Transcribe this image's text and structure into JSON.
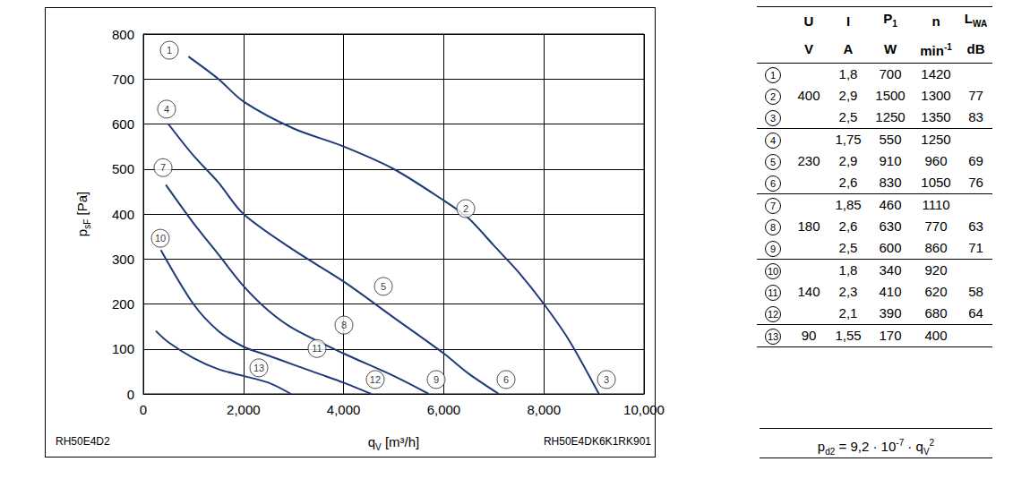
{
  "chart_data": {
    "type": "line",
    "xlabel": [
      {
        "t": "q"
      },
      {
        "sub": "V"
      },
      {
        "t": " [m³/h]"
      }
    ],
    "ylabel": [
      {
        "t": "p"
      },
      {
        "sub": "sF"
      },
      {
        "t": " [Pa]"
      }
    ],
    "xlim": [
      0,
      10000
    ],
    "xticks": [
      0,
      2000,
      4000,
      6000,
      8000,
      10000
    ],
    "ylim": [
      0,
      800
    ],
    "yticks": [
      0,
      100,
      200,
      300,
      400,
      500,
      600,
      700,
      800
    ],
    "grid": true,
    "marker": "none",
    "series": [
      {
        "color": "#1f3a7a",
        "x": [
          900,
          1500,
          2000,
          3000,
          4000,
          5000,
          6000,
          6500,
          7000,
          7500,
          8000,
          8500,
          9100
        ],
        "values": [
          750,
          700,
          650,
          590,
          550,
          500,
          430,
          390,
          330,
          270,
          200,
          120,
          0
        ]
      },
      {
        "color": "#1f3a7a",
        "x": [
          500,
          1000,
          1500,
          2000,
          3000,
          4000,
          5000,
          6000,
          6500,
          7100
        ],
        "values": [
          600,
          530,
          470,
          400,
          320,
          250,
          170,
          90,
          45,
          0
        ]
      },
      {
        "color": "#1f3a7a",
        "x": [
          450,
          1000,
          1500,
          2000,
          2500,
          3000,
          4000,
          5000,
          5700
        ],
        "values": [
          465,
          380,
          310,
          240,
          185,
          145,
          90,
          40,
          0
        ]
      },
      {
        "color": "#1f3a7a",
        "x": [
          350,
          1000,
          1500,
          2000,
          2500,
          3000,
          3500,
          4000,
          4550
        ],
        "values": [
          320,
          200,
          140,
          105,
          85,
          65,
          45,
          25,
          0
        ]
      },
      {
        "color": "#1f3a7a",
        "x": [
          250,
          500,
          1000,
          1500,
          2000,
          2500,
          2950
        ],
        "values": [
          140,
          115,
          80,
          55,
          40,
          25,
          0
        ]
      }
    ],
    "annotations": [
      {
        "text": "1",
        "x": 520,
        "y": 764
      },
      {
        "text": "2",
        "x": 6440,
        "y": 412
      },
      {
        "text": "3",
        "x": 9250,
        "y": 32
      },
      {
        "text": "4",
        "x": 465,
        "y": 633
      },
      {
        "text": "5",
        "x": 4795,
        "y": 239
      },
      {
        "text": "6",
        "x": 7245,
        "y": 32
      },
      {
        "text": "7",
        "x": 394,
        "y": 503
      },
      {
        "text": "8",
        "x": 4007,
        "y": 153
      },
      {
        "text": "9",
        "x": 5850,
        "y": 32
      },
      {
        "text": "10",
        "x": 340,
        "y": 346
      },
      {
        "text": "11",
        "x": 3470,
        "y": 101
      },
      {
        "text": "12",
        "x": 4633,
        "y": 32
      },
      {
        "text": "13",
        "x": 2308,
        "y": 58
      }
    ],
    "notes": {
      "left": "RH50E4D2",
      "right": "RH50E4DK6K1RK901"
    }
  },
  "table": {
    "header": [
      [
        {
          "t": "U"
        }
      ],
      [
        {
          "t": "I"
        }
      ],
      [
        {
          "t": "P"
        },
        {
          "sub": "1"
        }
      ],
      [
        {
          "t": "n"
        }
      ],
      [
        {
          "t": "L"
        },
        {
          "sub": "WA"
        }
      ]
    ],
    "units": [
      [
        {
          "t": "V"
        }
      ],
      [
        {
          "t": "A"
        }
      ],
      [
        {
          "t": "W"
        }
      ],
      [
        {
          "t": "min"
        },
        {
          "sup": "-1"
        }
      ],
      [
        {
          "t": "dB"
        }
      ]
    ],
    "groups": [
      {
        "U": "400",
        "rows": [
          [
            "1",
            "1,8",
            "700",
            "1420"
          ],
          [
            "2",
            "2,9",
            "1500",
            "1300",
            "77"
          ],
          [
            "3",
            "2,5",
            "1250",
            "1350",
            "83"
          ]
        ]
      },
      {
        "U": "230",
        "rows": [
          [
            "4",
            "1,75",
            "550",
            "1250"
          ],
          [
            "5",
            "2,9",
            "910",
            "960",
            "69"
          ],
          [
            "6",
            "2,6",
            "830",
            "1050",
            "76"
          ]
        ]
      },
      {
        "U": "180",
        "rows": [
          [
            "7",
            "1,85",
            "460",
            "1110"
          ],
          [
            "8",
            "2,6",
            "630",
            "770",
            "63"
          ],
          [
            "9",
            "2,5",
            "600",
            "860",
            "71"
          ]
        ]
      },
      {
        "U": "140",
        "rows": [
          [
            "10",
            "1,8",
            "340",
            "920"
          ],
          [
            "11",
            "2,3",
            "410",
            "620",
            "58"
          ],
          [
            "12",
            "2,1",
            "390",
            "680",
            "64"
          ]
        ]
      },
      {
        "U": "90",
        "rows": [
          [
            "13",
            "1,55",
            "170",
            "400"
          ]
        ]
      }
    ],
    "formula": [
      {
        "t": "p"
      },
      {
        "sub": "d2"
      },
      {
        "t": " = 9,2 · 10"
      },
      {
        "sup": "-7"
      },
      {
        "t": " · q"
      },
      {
        "sub": "V"
      },
      {
        "sup": "2"
      }
    ]
  }
}
